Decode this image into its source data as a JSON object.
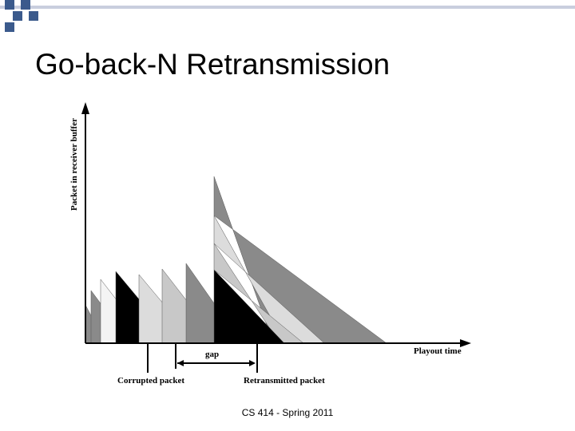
{
  "slide": {
    "title": "Go-back-N Retransmission",
    "footer": "CS 414 - Spring 2011"
  },
  "diagram": {
    "y_axis_label": "Packet in receiver buffer",
    "x_axis_label": "Playout time",
    "gap_label": "gap",
    "corrupted_label": "Corrupted packet",
    "retransmitted_label": "Retransmitted packet",
    "colors": {
      "dark_gray": "#8a8a8a",
      "mid_gray": "#a6a6a6",
      "light_gray": "#c8c8c8",
      "lighter_gray": "#dcdcdc",
      "white": "#f4f4f4",
      "black": "#000000",
      "axis": "#000000",
      "topbar_square": "#3b5a8c",
      "topbar_line": "#c9cede"
    }
  }
}
